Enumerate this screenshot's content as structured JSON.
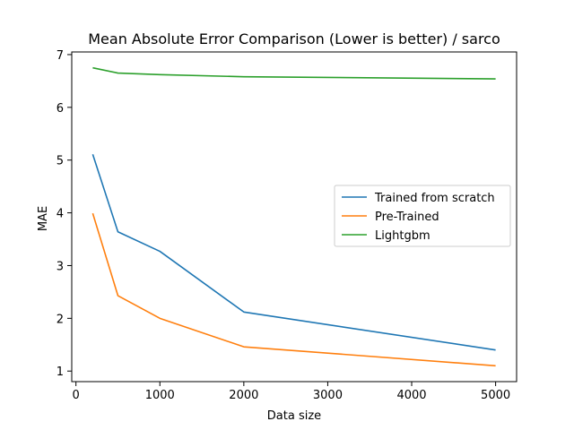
{
  "chart_data": {
    "type": "line",
    "title": "Mean Absolute Error Comparison (Lower is better) / sarco",
    "xlabel": "Data size",
    "ylabel": "MAE",
    "xlim": [
      -50,
      5250
    ],
    "ylim": [
      0.8,
      7.05
    ],
    "xticks": [
      0,
      1000,
      2000,
      3000,
      4000,
      5000
    ],
    "yticks": [
      1,
      2,
      3,
      4,
      5,
      6,
      7
    ],
    "grid": false,
    "legend_position": "center-right",
    "series": [
      {
        "name": "Trained from scratch",
        "color": "#1f77b4",
        "x": [
          200,
          500,
          1000,
          2000,
          5000
        ],
        "y": [
          5.11,
          3.64,
          3.27,
          2.12,
          1.4
        ]
      },
      {
        "name": "Pre-Trained",
        "color": "#ff7f0e",
        "x": [
          200,
          500,
          1000,
          2000,
          5000
        ],
        "y": [
          3.99,
          2.43,
          2.0,
          1.46,
          1.1
        ]
      },
      {
        "name": "Lightgbm",
        "color": "#2ca02c",
        "x": [
          200,
          500,
          1000,
          2000,
          5000
        ],
        "y": [
          6.75,
          6.65,
          6.62,
          6.58,
          6.54
        ]
      }
    ]
  }
}
